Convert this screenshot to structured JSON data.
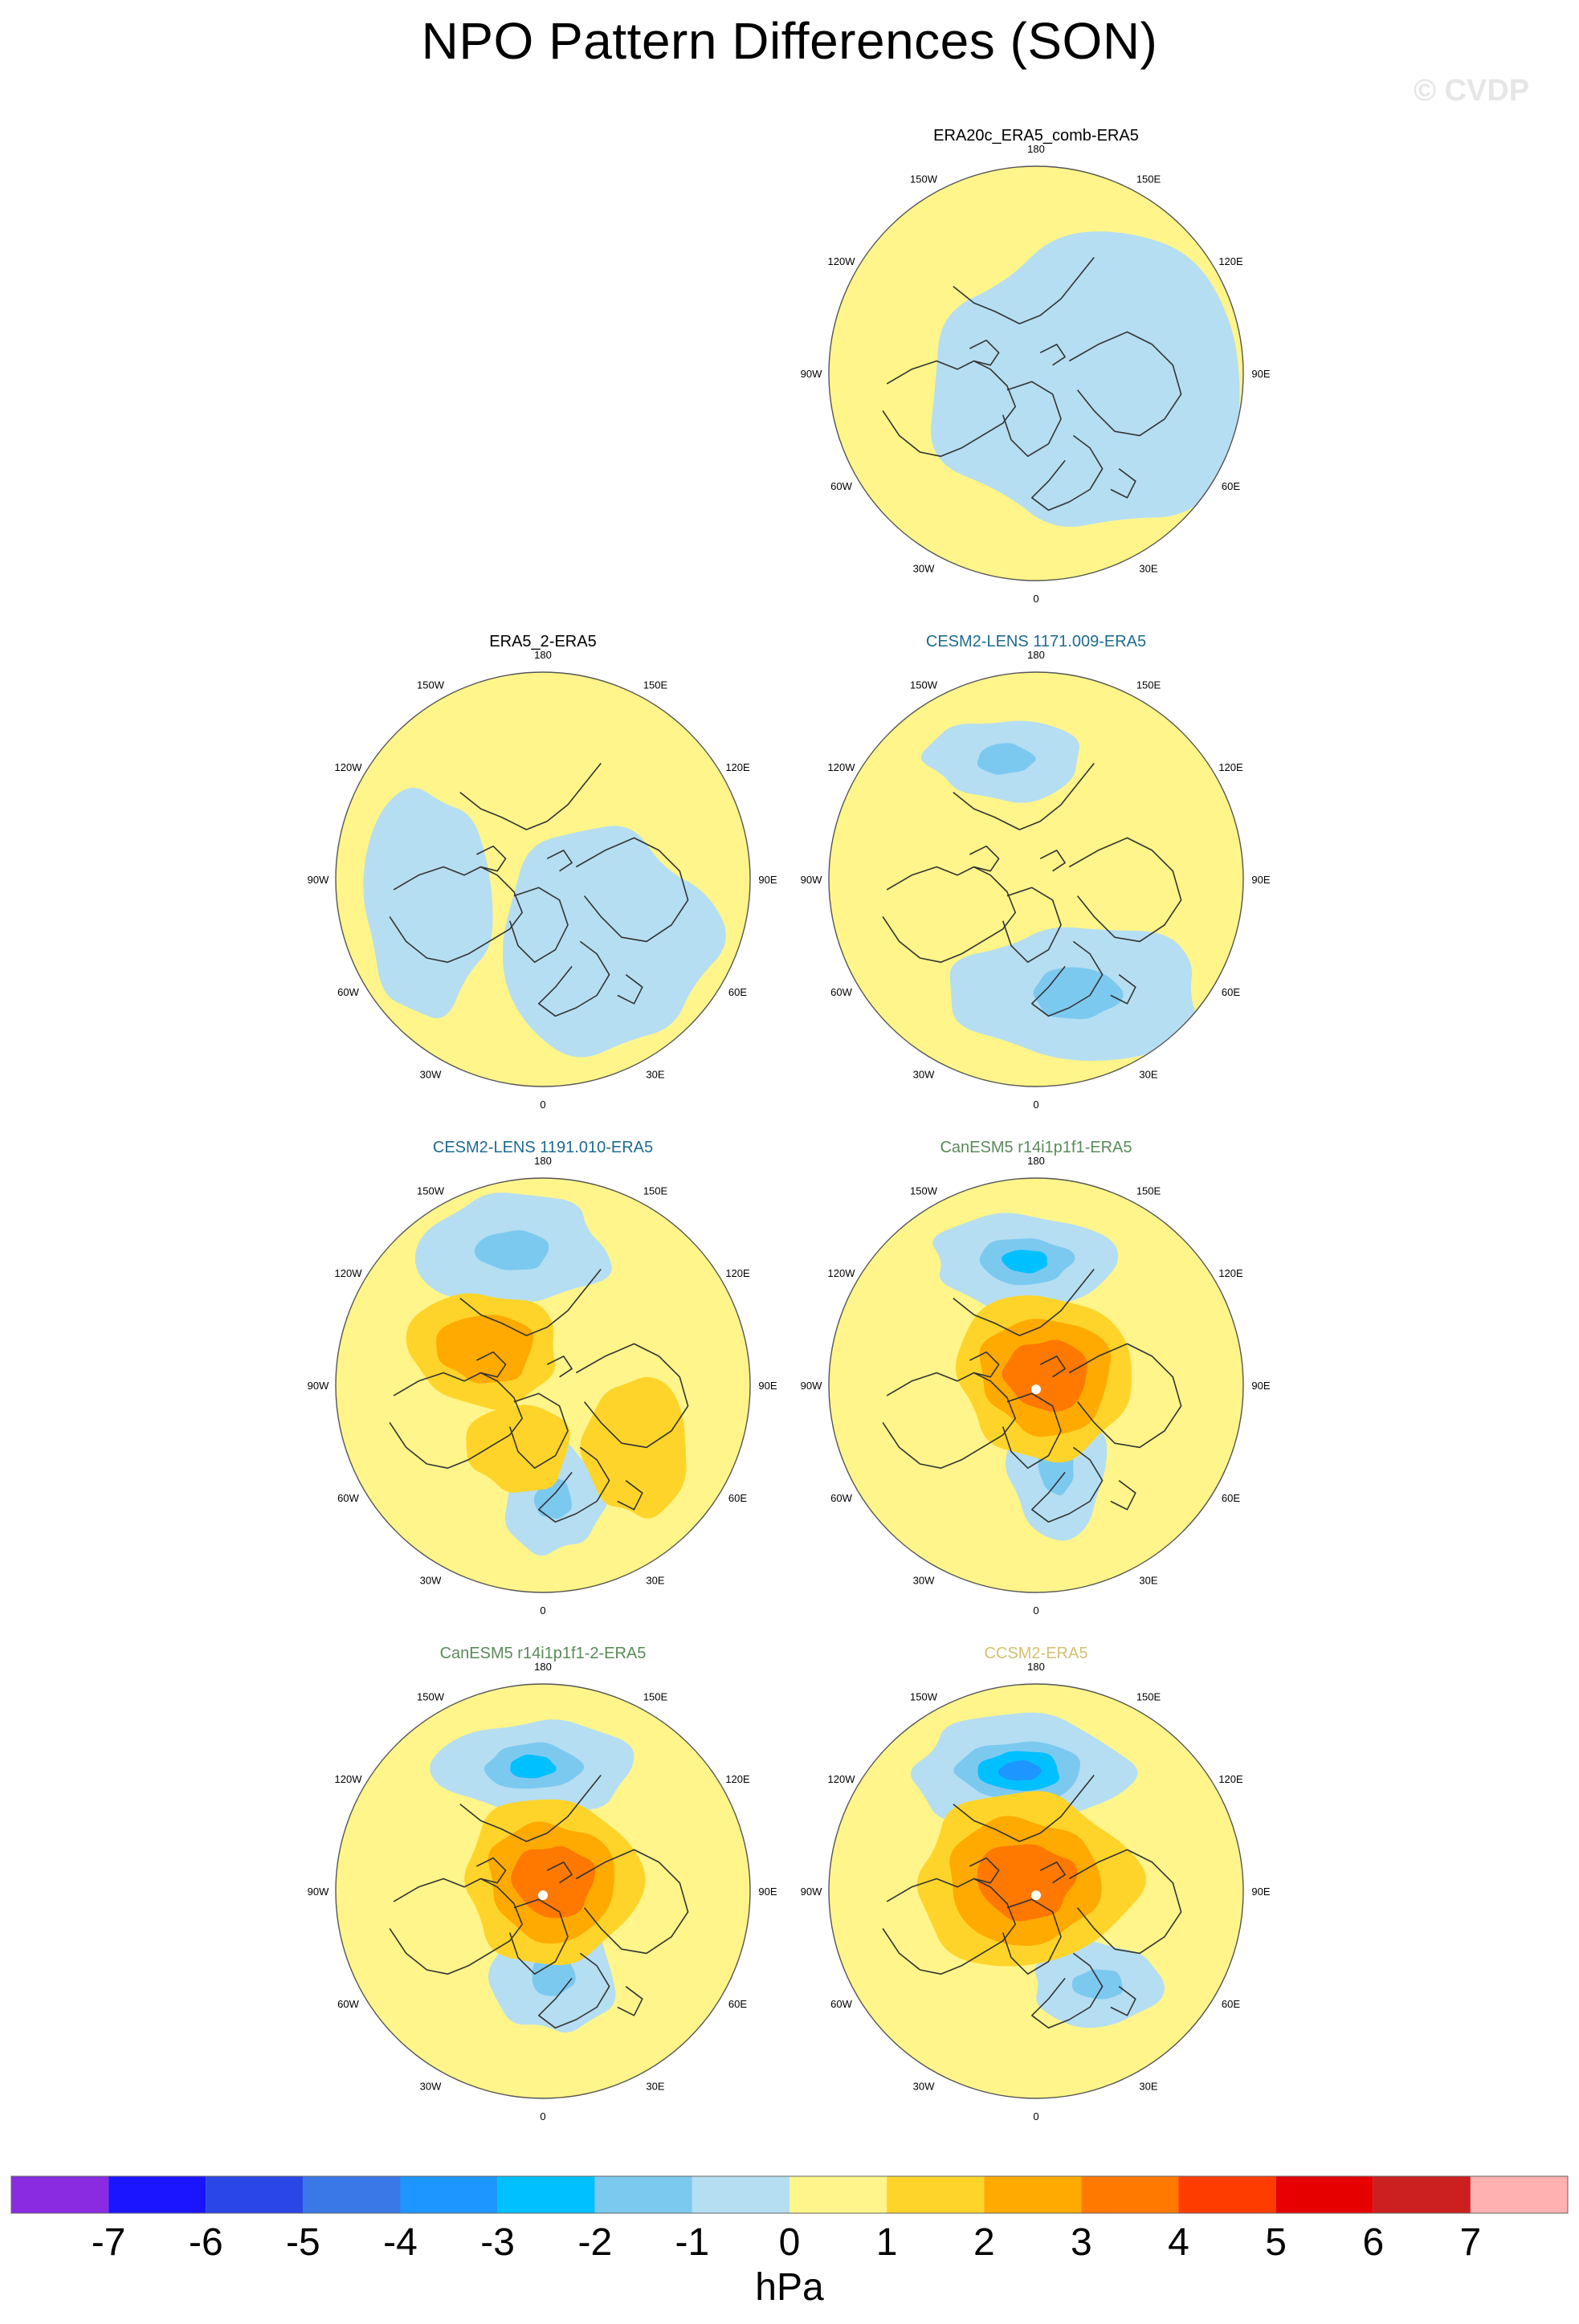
{
  "title": "NPO Pattern Differences (SON)",
  "watermark": "© CVDP",
  "colors": {
    "title_default": "#000000",
    "title_cesm2_lens": "#1e6b8f",
    "title_canesm5": "#5a8a5a",
    "title_ccsm2": "#d4c070",
    "coast": "#333333",
    "center_dot": "#ffffff"
  },
  "lon_labels": [
    "180",
    "150E",
    "120E",
    "90E",
    "60E",
    "30E",
    "0",
    "30W",
    "60W",
    "90W",
    "120W",
    "150W"
  ],
  "chart_data": {
    "type": "heatmap",
    "description_units": "hPa",
    "projection": "north-polar-stereographic",
    "panels": [
      {
        "id": "era20c",
        "title": "ERA20c_ERA5_comb-ERA5",
        "title_color": "title_default",
        "max_anomaly": 0.7,
        "min_anomaly": -0.5
      },
      {
        "id": "era5_2",
        "title": "ERA5_2-ERA5",
        "title_color": "title_default",
        "max_anomaly": 0.7,
        "min_anomaly": -0.6
      },
      {
        "id": "cesm2_1171",
        "title": "CESM2-LENS 1171.009-ERA5",
        "title_color": "title_cesm2_lens",
        "max_anomaly": 1.6,
        "min_anomaly": -1.8
      },
      {
        "id": "cesm2_1191",
        "title": "CESM2-LENS 1191.010-ERA5",
        "title_color": "title_cesm2_lens",
        "max_anomaly": 2.8,
        "min_anomaly": -2.6
      },
      {
        "id": "canesm5_r14",
        "title": "CanESM5 r14i1p1f1-ERA5",
        "title_color": "title_canesm5",
        "max_anomaly": 3.4,
        "min_anomaly": -2.7
      },
      {
        "id": "canesm5_r14_2",
        "title": "CanESM5 r14i1p1f1-2-ERA5",
        "title_color": "title_canesm5",
        "max_anomaly": 3.4,
        "min_anomaly": -2.7
      },
      {
        "id": "ccsm2",
        "title": "CCSM2-ERA5",
        "title_color": "title_ccsm2",
        "max_anomaly": 3.6,
        "min_anomaly": -3.6
      }
    ],
    "colorbar": {
      "unit_label": "hPa",
      "tick_labels": [
        "-7",
        "-6",
        "-5",
        "-4",
        "-3",
        "-2",
        "-1",
        "0",
        "1",
        "2",
        "3",
        "4",
        "5",
        "6",
        "7"
      ],
      "boundaries": [
        -7,
        -6,
        -5,
        -4,
        -3,
        -2,
        -1,
        0,
        1,
        2,
        3,
        4,
        5,
        6,
        7
      ],
      "colors": [
        "#8a2be2",
        "#1a14ff",
        "#2a46e6",
        "#3a78e8",
        "#1e96ff",
        "#00c0ff",
        "#7cc9f0",
        "#b5def2",
        "#fff58a",
        "#ffd42a",
        "#ffaa00",
        "#ff7800",
        "#ff3c00",
        "#e60000",
        "#cc1f1f",
        "#ffb0b0"
      ]
    }
  }
}
